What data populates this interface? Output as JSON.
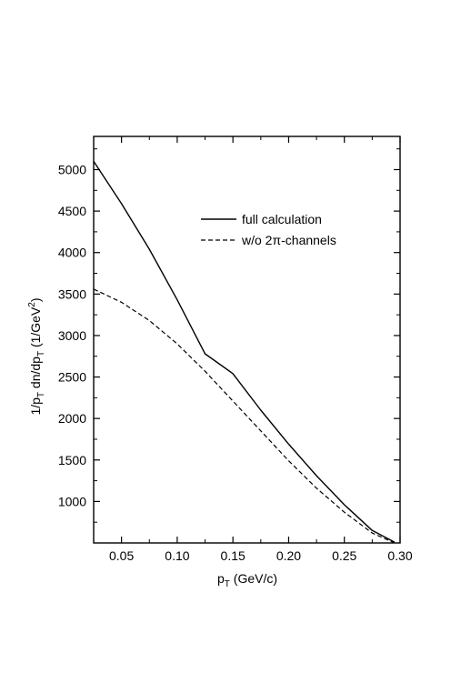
{
  "chart_data": {
    "type": "line",
    "title": "",
    "xlabel": {
      "main": "p",
      "sub": "T",
      "rest": " (GeV/c)"
    },
    "ylabel": {
      "parts": [
        "1/p",
        "T",
        " dn/dp",
        "T",
        " (1/GeV",
        "2",
        ")"
      ]
    },
    "xlim": [
      0.025,
      0.3
    ],
    "ylim": [
      500,
      5400
    ],
    "x_ticks": [
      0.05,
      0.1,
      0.15,
      0.2,
      0.25,
      0.3
    ],
    "x_tick_labels": [
      "0.05",
      "0.10",
      "0.15",
      "0.20",
      "0.25",
      "0.30"
    ],
    "y_ticks": [
      1000,
      1500,
      2000,
      2500,
      3000,
      3500,
      4000,
      4500,
      5000
    ],
    "y_tick_labels": [
      "1000",
      "1500",
      "2000",
      "2500",
      "3000",
      "3500",
      "4000",
      "4500",
      "5000"
    ],
    "grid": false,
    "legend_position": "top-right",
    "series": [
      {
        "name": "full calculation",
        "style": "solid",
        "x": [
          0.025,
          0.05,
          0.075,
          0.1,
          0.125,
          0.15,
          0.175,
          0.2,
          0.225,
          0.25,
          0.275,
          0.295
        ],
        "y": [
          5100,
          4590,
          4040,
          3430,
          2780,
          2540,
          2100,
          1690,
          1310,
          960,
          650,
          510
        ]
      },
      {
        "name": "w/o 2π-channels",
        "style": "dashed",
        "x": [
          0.025,
          0.05,
          0.075,
          0.1,
          0.125,
          0.15,
          0.175,
          0.2,
          0.225,
          0.25,
          0.275,
          0.295
        ],
        "y": [
          3560,
          3400,
          3180,
          2900,
          2570,
          2210,
          1850,
          1490,
          1160,
          870,
          620,
          500
        ]
      }
    ]
  }
}
